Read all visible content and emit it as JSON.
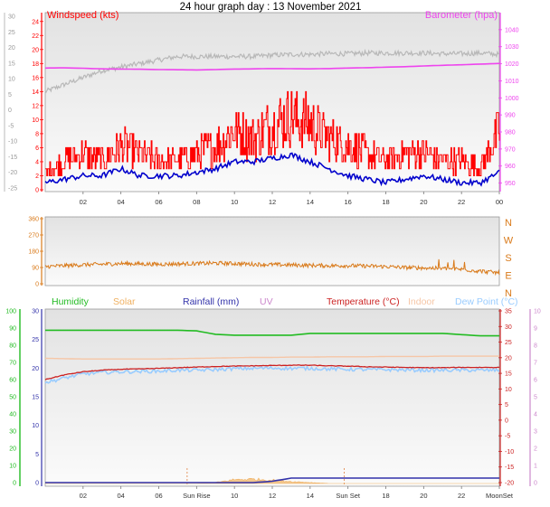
{
  "title": "24 hour graph day : 13 November 2021",
  "colors": {
    "windspeed": "#ff0000",
    "gust": "#ff0000",
    "avg_wind": "#0000cc",
    "barometer": "#ee44ee",
    "baro_grey": "#b8b8b8",
    "direction": "#d97a1a",
    "humidity": "#22bb22",
    "solar": "#f0b060",
    "rainfall": "#3333aa",
    "uv": "#cc88cc",
    "temperature": "#cc2222",
    "indoor": "#f6c6a6",
    "dewpoint": "#99ccff"
  },
  "x_ticks": [
    "02",
    "04",
    "06",
    "08",
    "10",
    "12",
    "14",
    "16",
    "18",
    "20",
    "22",
    "00"
  ],
  "x_ticks_bottom": [
    "02",
    "04",
    "06",
    "Sun Rise",
    "10",
    "12",
    "14",
    "Sun Set",
    "18",
    "20",
    "22",
    "MoonSet"
  ],
  "chart_data": [
    {
      "type": "line",
      "name": "wind-barometer",
      "legend": {
        "left": "Windspeed (kts)",
        "right": "Barometer (hpa)"
      },
      "y_left_ticks": [
        "24",
        "22",
        "20",
        "18",
        "16",
        "14",
        "12",
        "10",
        "8",
        "6",
        "4",
        "2",
        "0"
      ],
      "y_far_left_ticks": [
        "30",
        "25",
        "20",
        "15",
        "10",
        "5",
        "0",
        "-5",
        "-10",
        "-15",
        "-20",
        "-25"
      ],
      "y_right_ticks": [
        "1040",
        "1030",
        "1020",
        "1010",
        "1000",
        "990",
        "980",
        "970",
        "960",
        "950"
      ],
      "ylim_left": [
        0,
        25
      ],
      "ylim_right": [
        945,
        1050
      ],
      "x_hours": [
        0,
        1,
        2,
        3,
        4,
        5,
        6,
        7,
        8,
        9,
        10,
        11,
        12,
        13,
        14,
        15,
        16,
        17,
        18,
        19,
        20,
        21,
        22,
        23,
        24
      ],
      "series": [
        {
          "values": [
            2,
            4,
            5,
            4,
            6,
            5,
            4,
            4,
            5,
            6,
            8,
            7,
            9,
            10,
            9,
            7,
            6,
            5,
            4,
            5,
            5,
            4,
            4,
            3,
            8
          ]
        },
        {
          "values": [
            1,
            1.5,
            2,
            2,
            3,
            2,
            2,
            2,
            2.5,
            3,
            4,
            4,
            4.5,
            5,
            4,
            3,
            2,
            1.5,
            1,
            1.5,
            2,
            1.5,
            1,
            1,
            2.5
          ]
        },
        {
          "values": [
            1017.5,
            1017.6,
            1017.4,
            1017.0,
            1016.9,
            1016.8,
            1016.6,
            1016.5,
            1016.4,
            1016.6,
            1016.9,
            1017.0,
            1017.2,
            1017.1,
            1017.0,
            1017.2,
            1017.5,
            1017.7,
            1018.0,
            1018.3,
            1018.7,
            1019.1,
            1019.4,
            1019.8,
            1020.2
          ]
        },
        {
          "values": [
            14,
            15,
            16,
            17,
            17.5,
            18,
            18.5,
            19,
            19,
            19,
            19,
            19,
            19.2,
            19.3,
            19.3,
            19.4,
            19.4,
            19.5,
            19.5,
            19.5,
            19.5,
            19.4,
            19.4,
            19.5,
            19.3
          ]
        }
      ]
    },
    {
      "type": "scatter",
      "name": "wind-direction",
      "y_left_ticks": [
        "360",
        "270",
        "180",
        "90",
        "0"
      ],
      "y_right_ticks": [
        "N",
        "W",
        "S",
        "E",
        "N"
      ],
      "ylim": [
        0,
        360
      ],
      "x_hours": [
        0,
        1,
        2,
        3,
        4,
        5,
        6,
        7,
        8,
        9,
        10,
        11,
        12,
        13,
        14,
        15,
        16,
        17,
        18,
        19,
        20,
        21,
        22,
        23,
        24
      ],
      "series": [
        {
          "values": [
            95,
            100,
            105,
            108,
            112,
            110,
            108,
            110,
            112,
            114,
            112,
            108,
            106,
            104,
            102,
            100,
            100,
            98,
            95,
            90,
            88,
            85,
            80,
            70,
            60
          ]
        }
      ]
    },
    {
      "type": "line",
      "name": "temperature-humidity",
      "legend": [
        "Humidity",
        "Solar",
        "Rainfall (mm)",
        "UV",
        "Temperature (°C)",
        "Indoor",
        "Dew Point (°C)"
      ],
      "y_hum_ticks": [
        "100",
        "90",
        "80",
        "70",
        "60",
        "50",
        "40",
        "30",
        "20",
        "10",
        "0"
      ],
      "y_rain_ticks": [
        "30",
        "25",
        "20",
        "15",
        "10",
        "5",
        "0"
      ],
      "y_temp_ticks": [
        "35",
        "30",
        "25",
        "20",
        "15",
        "10",
        "5",
        "0",
        "-5",
        "-10",
        "-15",
        "-20"
      ],
      "y_uv_ticks": [
        "10",
        "9",
        "8",
        "7",
        "6",
        "5",
        "4",
        "3",
        "2",
        "1",
        "0"
      ],
      "ylim_temp": [
        -20,
        35
      ],
      "x_hours": [
        0,
        1,
        2,
        3,
        4,
        5,
        6,
        7,
        8,
        9,
        10,
        11,
        12,
        13,
        14,
        15,
        16,
        17,
        18,
        19,
        20,
        21,
        22,
        23,
        24
      ],
      "series": [
        {
          "values": [
            28.8,
            28.8,
            28.8,
            28.8,
            28.8,
            28.8,
            28.8,
            28.8,
            28.6,
            27.5,
            27.2,
            27.2,
            27.2,
            27.2,
            27.8,
            27.8,
            27.8,
            27.8,
            27.8,
            27.8,
            27.8,
            27.8,
            27.4,
            27.0,
            27.0
          ]
        },
        {
          "values": [
            13,
            14.5,
            15.5,
            16,
            16.3,
            16.4,
            16.6,
            16.8,
            17,
            17.2,
            17.3,
            17.4,
            17.5,
            17.6,
            17.6,
            17.4,
            17.3,
            17.1,
            17,
            16.9,
            16.8,
            16.8,
            16.9,
            16.9,
            16.9
          ]
        },
        {
          "values": [
            12,
            13.5,
            14.8,
            15.3,
            15.5,
            15.6,
            15.7,
            16,
            16,
            16.2,
            16.5,
            16.6,
            16.7,
            16.6,
            16.6,
            16.4,
            16.3,
            16.2,
            16.2,
            16.1,
            16.0,
            16.0,
            16.0,
            16.0,
            16.0
          ]
        },
        {
          "values": [
            19.8,
            19.7,
            19.6,
            19.6,
            19.6,
            19.6,
            19.6,
            19.7,
            19.8,
            19.9,
            20.0,
            20.1,
            20.1,
            20.2,
            20.2,
            20.3,
            20.3,
            20.3,
            20.4,
            20.4,
            20.4,
            20.5,
            20.5,
            20.5,
            20.5
          ]
        },
        {
          "values": [
            0,
            0,
            0,
            0,
            0,
            0,
            0,
            0,
            0,
            0,
            0,
            0,
            0.3,
            1.0,
            1.0,
            1.0,
            1.0,
            1.0,
            1.0,
            1.0,
            1.0,
            1.0,
            1.0,
            1.0,
            1.0
          ]
        },
        {
          "values": [
            0,
            0,
            0,
            0,
            0,
            0,
            0,
            0,
            0,
            0.2,
            0.8,
            0.9,
            0.7,
            0.4,
            0.2,
            0,
            0,
            0,
            0,
            0,
            0,
            0,
            0,
            0,
            0
          ]
        }
      ]
    }
  ]
}
